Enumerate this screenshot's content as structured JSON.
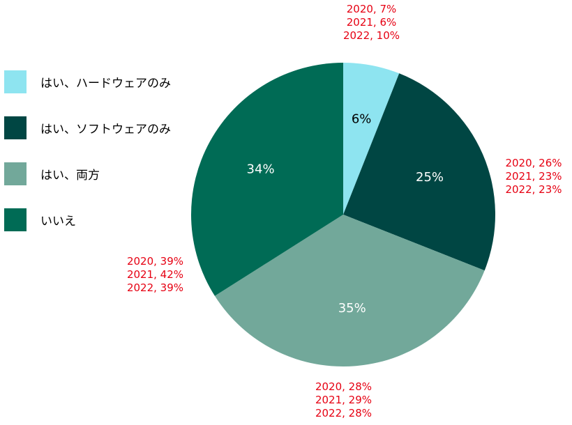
{
  "chart_data": {
    "type": "pie",
    "slices": [
      {
        "label": "はい、ハードウェアのみ",
        "value": 6,
        "display": "6%",
        "color": "#8ee4f0",
        "text_color": "#000000",
        "history": [
          "2020, 7%",
          "2021, 6%",
          "2022, 10%"
        ]
      },
      {
        "label": "はい、ソフトウェアのみ",
        "value": 25,
        "display": "25%",
        "color": "#004643",
        "text_color": "#ffffff",
        "history": [
          "2020, 26%",
          "2021, 23%",
          "2022, 23%"
        ]
      },
      {
        "label": "はい、両方",
        "value": 35,
        "display": "35%",
        "color": "#72a89a",
        "text_color": "#ffffff",
        "history": [
          "2020, 28%",
          "2021, 29%",
          "2022, 28%"
        ]
      },
      {
        "label": "いいえ",
        "value": 34,
        "display": "34%",
        "color": "#006b55",
        "text_color": "#ffffff",
        "history": [
          "2020, 39%",
          "2021, 42%",
          "2022, 39%"
        ]
      }
    ],
    "legend_position": "left",
    "start_angle": "12 o'clock",
    "direction": "clockwise",
    "annotation_color": "#e60012"
  }
}
